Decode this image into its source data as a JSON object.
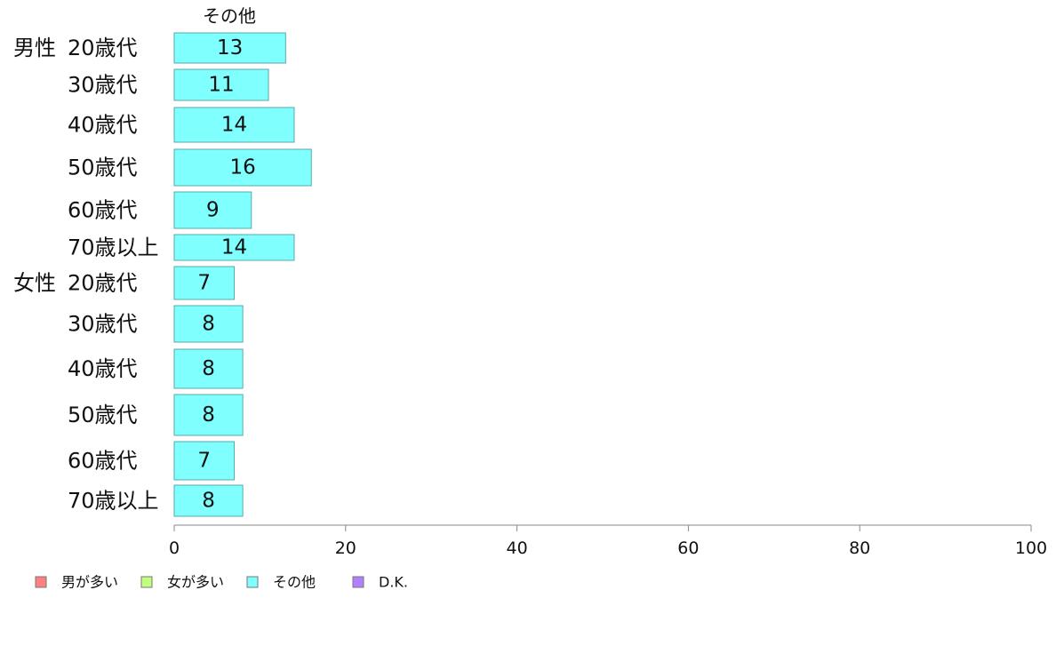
{
  "chart_data": {
    "type": "bar",
    "orientation": "horizontal",
    "stacked": true,
    "column_label": "その他",
    "groups": [
      {
        "label": "男性",
        "categories": [
          "20歳代",
          "30歳代",
          "40歳代",
          "50歳代",
          "60歳代",
          "70歳以上"
        ]
      },
      {
        "label": "女性",
        "categories": [
          "20歳代",
          "30歳代",
          "40歳代",
          "50歳代",
          "60歳代",
          "70歳以上"
        ]
      }
    ],
    "series": [
      {
        "name": "その他",
        "color": "#80ffff",
        "values": [
          13,
          11,
          14,
          16,
          9,
          14,
          7,
          8,
          8,
          8,
          7,
          8
        ],
        "labels": [
          "13",
          "11",
          "14",
          "16",
          "9",
          "14",
          "7",
          "8",
          "8",
          "8",
          "7",
          "8"
        ]
      }
    ],
    "xlim": [
      0,
      100
    ],
    "xticks": [
      "0",
      "20",
      "40",
      "60",
      "80",
      "100"
    ],
    "legend": {
      "position": "bottom-left",
      "items": [
        {
          "name": "男が多い",
          "color": "#ff8080"
        },
        {
          "name": "女が多い",
          "color": "#c0ff80"
        },
        {
          "name": "その他",
          "color": "#80ffff"
        },
        {
          "name": "D.K.",
          "color": "#b080ff"
        }
      ]
    }
  }
}
